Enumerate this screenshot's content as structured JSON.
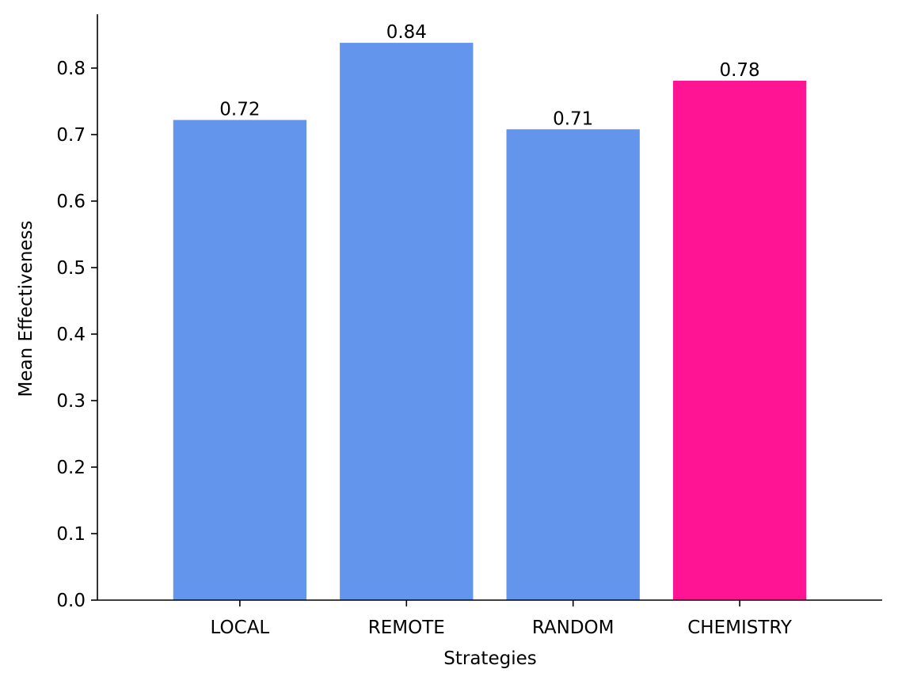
{
  "chart_data": {
    "type": "bar",
    "title": "",
    "xlabel": "Strategies",
    "ylabel": "Mean Effectiveness",
    "categories": [
      "LOCAL",
      "REMOTE",
      "RANDOM",
      "CHEMISTRY"
    ],
    "values": [
      0.722,
      0.838,
      0.708,
      0.781
    ],
    "data_labels": [
      "0.72",
      "0.84",
      "0.71",
      "0.78"
    ],
    "colors": [
      "#6495ED",
      "#6495ED",
      "#6495ED",
      "#FF1493"
    ],
    "ylim": [
      0,
      0.88
    ],
    "yticks": [
      0.0,
      0.1,
      0.2,
      0.3,
      0.4,
      0.5,
      0.6,
      0.7,
      0.8
    ],
    "ytick_labels": [
      "0.0",
      "0.1",
      "0.2",
      "0.3",
      "0.4",
      "0.5",
      "0.6",
      "0.7",
      "0.8"
    ],
    "grid": false,
    "legend": "none"
  }
}
